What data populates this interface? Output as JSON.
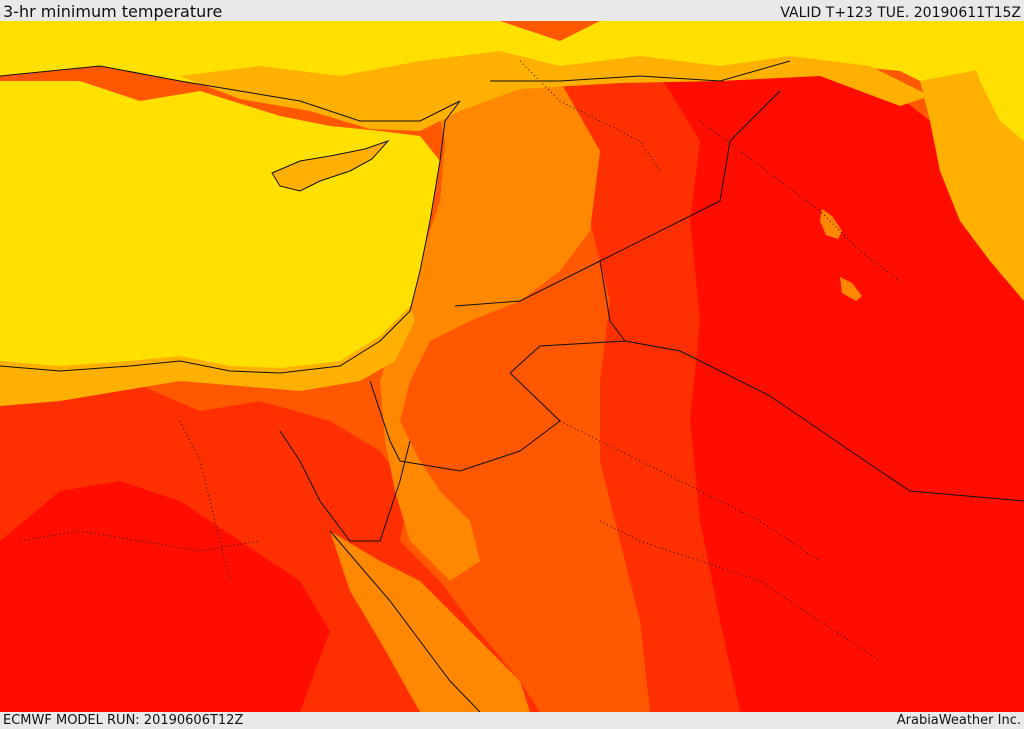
{
  "header": {
    "title": "3-hr minimum temperature",
    "valid": "VALID T+123 TUE. 20190611T15Z"
  },
  "footer": {
    "model_run": "ECMWF MODEL RUN: 20190606T12Z",
    "credit": "ArabiaWeather Inc."
  },
  "map": {
    "region": "Eastern Mediterranean and Middle East",
    "colors": {
      "cool": "#ffe000",
      "mild": "#ffb000",
      "warm": "#ff8800",
      "hot": "#ff5800",
      "hotter": "#ff3000",
      "hottest": "#ff0e00",
      "borders": "#111111"
    }
  }
}
